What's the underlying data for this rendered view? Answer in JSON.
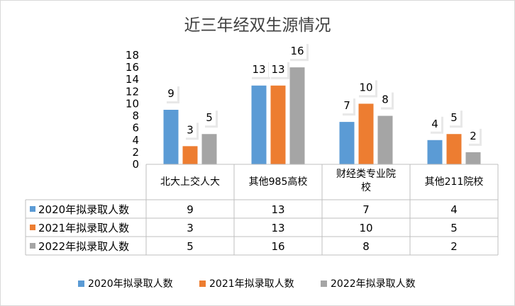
{
  "chart_data": {
    "type": "bar",
    "title": "近三年经双生源情况",
    "categories": [
      [
        "北大上交人大"
      ],
      [
        "其他985高校"
      ],
      [
        "财经类专业院",
        "校"
      ],
      [
        "其他211院校"
      ]
    ],
    "series": [
      {
        "name": "2020年拟录取人数",
        "values": [
          9,
          13,
          7,
          4
        ],
        "color": "#5b9bd5"
      },
      {
        "name": "2021年拟录取人数",
        "values": [
          3,
          13,
          10,
          5
        ],
        "color": "#ed7d31"
      },
      {
        "name": "2022年拟录取人数",
        "values": [
          5,
          16,
          8,
          2
        ],
        "color": "#a5a5a5"
      }
    ],
    "ylim": [
      0,
      18
    ],
    "yticks": [
      0,
      2,
      4,
      6,
      8,
      10,
      12,
      14,
      16,
      18
    ],
    "grid": false,
    "data_table": true,
    "legend_position": "bottom"
  }
}
